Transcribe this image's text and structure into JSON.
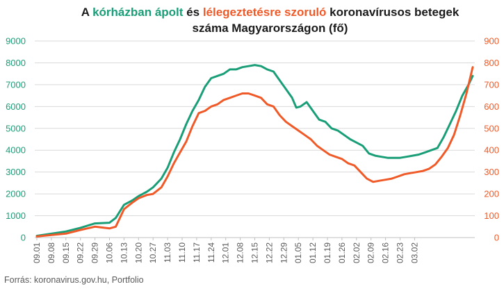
{
  "title": {
    "prefix": "A ",
    "green_part": "kórházban ápolt",
    "middle": " és ",
    "orange_part": "lélegeztetésre szoruló",
    "suffix": " koronavírusos betegek",
    "line2": "száma Magyarországon  (fő)"
  },
  "source": "Forrás: koronavirus.gov.hu, Portfolio",
  "colors": {
    "green": "#1a9e77",
    "orange": "#f05a28",
    "grid": "#d9d9d9",
    "axis_text": "#595959"
  },
  "chart_data": {
    "type": "line",
    "x_tick_labels": [
      "09.01",
      "09.08",
      "09.15",
      "09.22",
      "09.29",
      "10.06",
      "10.13",
      "10.20",
      "10.27",
      "11.03",
      "11.10",
      "11.17",
      "11.24",
      "12.01",
      "12.08",
      "12.15",
      "12.22",
      "12.29",
      "01.05",
      "01.12",
      "01.19",
      "01.26",
      "02.02",
      "02.09",
      "02.16",
      "02.23",
      "03.02"
    ],
    "y_left": {
      "min": 0,
      "max": 9000,
      "ticks": [
        0,
        1000,
        2000,
        3000,
        4000,
        5000,
        6000,
        7000,
        8000,
        9000
      ]
    },
    "y_right": {
      "min": 0,
      "max": 900,
      "ticks": [
        0,
        100,
        200,
        300,
        400,
        500,
        600,
        700,
        800,
        900
      ]
    },
    "grid": true,
    "series": [
      {
        "name": "kórházban ápolt",
        "axis": "left",
        "color": "#1a9e77",
        "points": [
          [
            0,
            80
          ],
          [
            7,
            180
          ],
          [
            14,
            280
          ],
          [
            21,
            450
          ],
          [
            28,
            650
          ],
          [
            35,
            680
          ],
          [
            38,
            900
          ],
          [
            42,
            1500
          ],
          [
            46,
            1700
          ],
          [
            49,
            1900
          ],
          [
            53,
            2100
          ],
          [
            56,
            2300
          ],
          [
            60,
            2700
          ],
          [
            63,
            3200
          ],
          [
            66,
            3900
          ],
          [
            69,
            4500
          ],
          [
            72,
            5200
          ],
          [
            75,
            5800
          ],
          [
            78,
            6300
          ],
          [
            81,
            6900
          ],
          [
            84,
            7300
          ],
          [
            87,
            7400
          ],
          [
            90,
            7500
          ],
          [
            93,
            7700
          ],
          [
            96,
            7700
          ],
          [
            99,
            7800
          ],
          [
            102,
            7850
          ],
          [
            105,
            7900
          ],
          [
            108,
            7850
          ],
          [
            111,
            7700
          ],
          [
            114,
            7600
          ],
          [
            117,
            7200
          ],
          [
            120,
            6800
          ],
          [
            123,
            6400
          ],
          [
            125,
            5950
          ],
          [
            127,
            6000
          ],
          [
            130,
            6200
          ],
          [
            133,
            5800
          ],
          [
            136,
            5400
          ],
          [
            139,
            5300
          ],
          [
            142,
            5000
          ],
          [
            145,
            4900
          ],
          [
            148,
            4700
          ],
          [
            151,
            4500
          ],
          [
            154,
            4350
          ],
          [
            157,
            4200
          ],
          [
            160,
            3850
          ],
          [
            163,
            3750
          ],
          [
            166,
            3700
          ],
          [
            169,
            3650
          ],
          [
            172,
            3650
          ],
          [
            175,
            3650
          ],
          [
            178,
            3700
          ],
          [
            181,
            3750
          ],
          [
            184,
            3800
          ],
          [
            187,
            3900
          ],
          [
            190,
            4000
          ],
          [
            193,
            4100
          ],
          [
            196,
            4600
          ],
          [
            199,
            5200
          ],
          [
            202,
            5800
          ],
          [
            205,
            6500
          ],
          [
            208,
            7000
          ],
          [
            210,
            7400
          ]
        ]
      },
      {
        "name": "lélegeztetésre szoruló",
        "axis": "right",
        "color": "#f05a28",
        "points": [
          [
            0,
            5
          ],
          [
            7,
            12
          ],
          [
            14,
            18
          ],
          [
            21,
            35
          ],
          [
            28,
            50
          ],
          [
            35,
            42
          ],
          [
            38,
            50
          ],
          [
            42,
            130
          ],
          [
            46,
            160
          ],
          [
            49,
            180
          ],
          [
            53,
            195
          ],
          [
            56,
            200
          ],
          [
            60,
            230
          ],
          [
            63,
            280
          ],
          [
            66,
            340
          ],
          [
            69,
            390
          ],
          [
            72,
            440
          ],
          [
            75,
            510
          ],
          [
            78,
            570
          ],
          [
            81,
            580
          ],
          [
            84,
            600
          ],
          [
            87,
            610
          ],
          [
            90,
            630
          ],
          [
            93,
            640
          ],
          [
            96,
            650
          ],
          [
            99,
            660
          ],
          [
            102,
            660
          ],
          [
            105,
            650
          ],
          [
            108,
            640
          ],
          [
            111,
            610
          ],
          [
            114,
            600
          ],
          [
            117,
            560
          ],
          [
            120,
            530
          ],
          [
            123,
            510
          ],
          [
            126,
            490
          ],
          [
            129,
            470
          ],
          [
            132,
            450
          ],
          [
            135,
            420
          ],
          [
            138,
            400
          ],
          [
            141,
            380
          ],
          [
            144,
            370
          ],
          [
            147,
            360
          ],
          [
            150,
            340
          ],
          [
            153,
            330
          ],
          [
            156,
            300
          ],
          [
            159,
            270
          ],
          [
            162,
            255
          ],
          [
            165,
            260
          ],
          [
            168,
            265
          ],
          [
            171,
            270
          ],
          [
            174,
            280
          ],
          [
            177,
            290
          ],
          [
            180,
            295
          ],
          [
            183,
            300
          ],
          [
            186,
            305
          ],
          [
            189,
            315
          ],
          [
            192,
            335
          ],
          [
            195,
            370
          ],
          [
            198,
            410
          ],
          [
            201,
            470
          ],
          [
            204,
            560
          ],
          [
            207,
            660
          ],
          [
            210,
            780
          ]
        ]
      }
    ]
  }
}
